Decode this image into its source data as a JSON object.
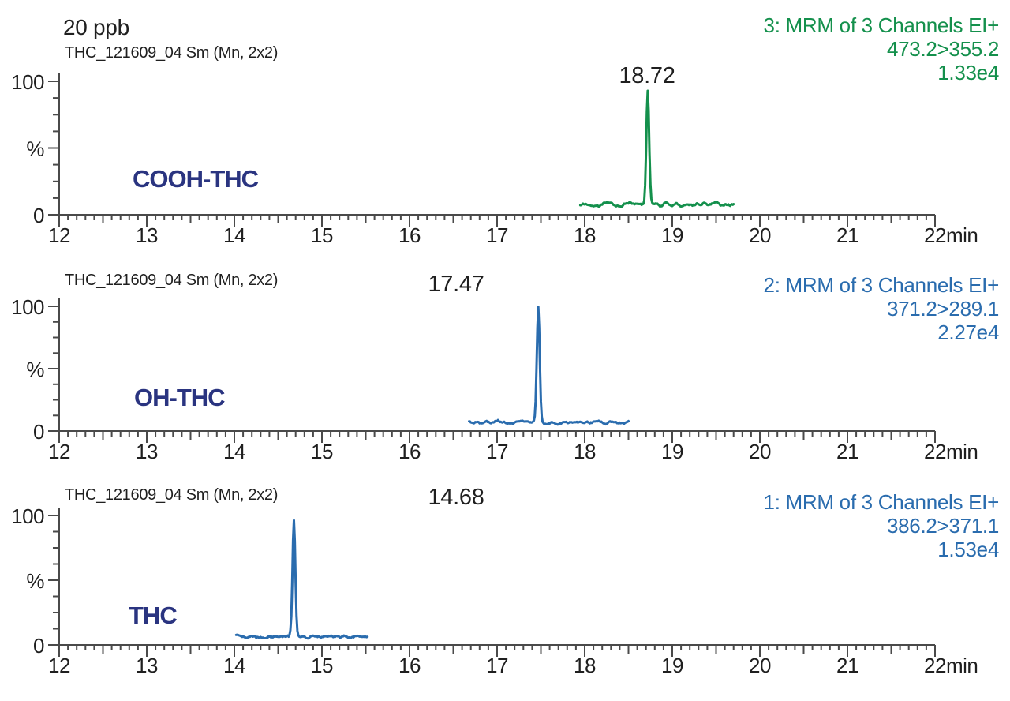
{
  "annotation": "20 ppb",
  "colors": {
    "green": "#14904C",
    "blue": "#2A6CAE",
    "navy": "#2A3480",
    "text": "#1F1F1F",
    "axis": "#4A4A4A"
  },
  "axis": {
    "x_ticks": [
      12,
      13,
      14,
      15,
      16,
      17,
      18,
      19,
      20,
      21,
      22
    ],
    "x_unit": "min",
    "x_minor_step": 0.1,
    "x_range": [
      12,
      22
    ],
    "y_range": [
      0,
      100
    ],
    "y_tick_labels": [
      "100",
      "%",
      "0"
    ],
    "y_minor_step_pct": 12.5
  },
  "chart_data": [
    {
      "type": "line",
      "compound": "COOH-THC",
      "header": "THC_121609_04 Sm (Mn, 2x2)",
      "channel_lines": [
        "3: MRM of 3 Channels EI+",
        "473.2>355.2",
        "1.33e4"
      ],
      "color_key": "green",
      "peak_label": "18.72",
      "peak_rt_min": 18.72,
      "peak_apex_pct": 94,
      "baseline_start_min": 17.95,
      "baseline_end_min": 19.7,
      "baseline_level_pct": 7.5,
      "noise_amp_pct": 1.4,
      "xlim": [
        12,
        22
      ],
      "ylim": [
        0,
        100
      ]
    },
    {
      "type": "line",
      "compound": "OH-THC",
      "header": "THC_121609_04 Sm (Mn, 2x2)",
      "channel_lines": [
        "2: MRM of 3 Channels EI+",
        "371.2>289.1",
        "2.27e4"
      ],
      "color_key": "blue",
      "peak_label": "17.47",
      "peak_rt_min": 17.47,
      "peak_apex_pct": 98,
      "baseline_start_min": 16.68,
      "baseline_end_min": 18.5,
      "baseline_level_pct": 7.0,
      "noise_amp_pct": 1.3,
      "xlim": [
        12,
        22
      ],
      "ylim": [
        0,
        100
      ]
    },
    {
      "type": "line",
      "compound": "THC",
      "header": "THC_121609_04 Sm (Mn, 2x2)",
      "channel_lines": [
        "1: MRM of 3 Channels EI+",
        "386.2>371.1",
        "1.53e4"
      ],
      "color_key": "blue",
      "peak_label": "14.68",
      "peak_rt_min": 14.68,
      "peak_apex_pct": 96,
      "baseline_start_min": 14.02,
      "baseline_end_min": 15.52,
      "baseline_level_pct": 6.5,
      "noise_amp_pct": 1.3,
      "xlim": [
        12,
        22
      ],
      "ylim": [
        0,
        100
      ]
    }
  ]
}
